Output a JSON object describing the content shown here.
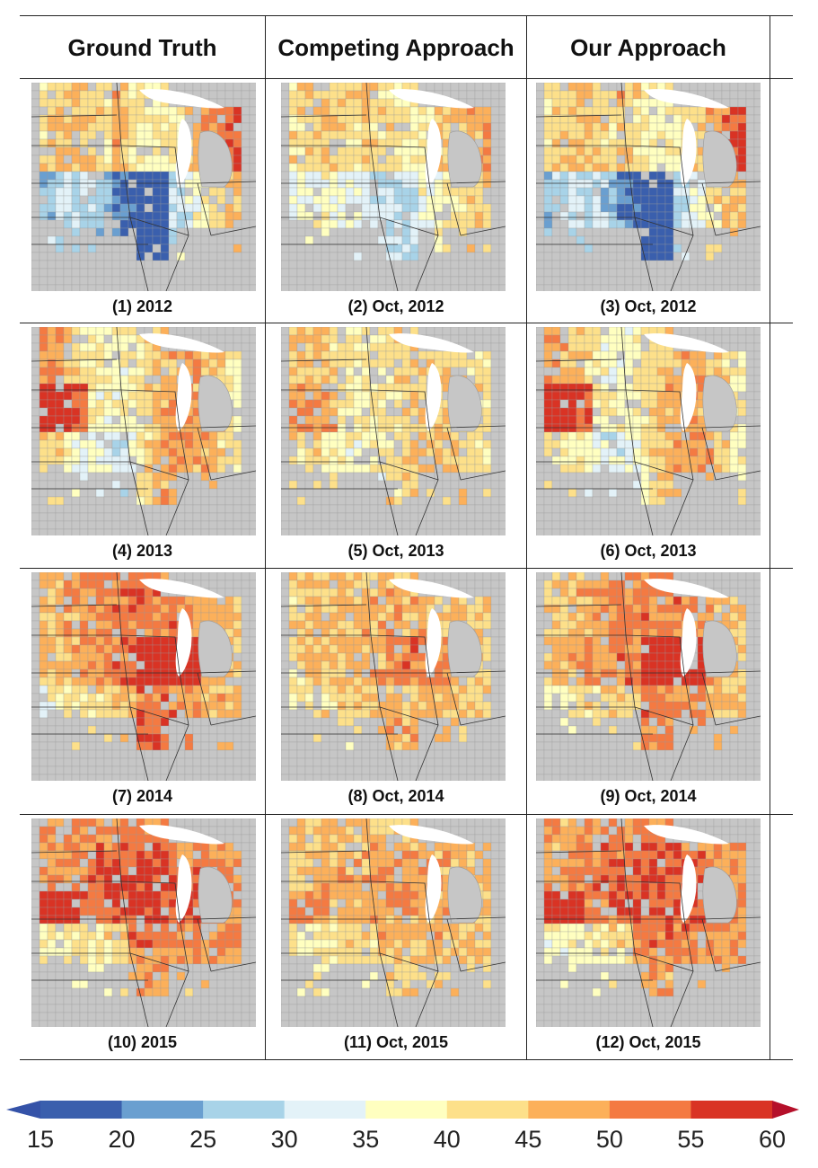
{
  "columns": [
    "Ground Truth",
    "Competing Approach",
    "Our Approach"
  ],
  "rows": [
    {
      "captions": [
        "(1) 2012",
        "(2) Oct, 2012",
        "(3) Oct, 2012"
      ]
    },
    {
      "captions": [
        "(4) 2013",
        "(5) Oct, 2013",
        "(6) Oct, 2013"
      ]
    },
    {
      "captions": [
        "(7) 2014",
        "(8) Oct, 2014",
        "(9) Oct, 2014"
      ]
    },
    {
      "captions": [
        "(10) 2015",
        "(11) Oct, 2015",
        "(12) Oct, 2015"
      ]
    }
  ],
  "legend": {
    "ticks": [
      "15",
      "20",
      "25",
      "30",
      "35",
      "40",
      "45",
      "50",
      "55",
      "60"
    ],
    "colors": [
      "#3a5fad",
      "#6a9fd0",
      "#a8d3e8",
      "#e3f2f8",
      "#ffffc0",
      "#fde08a",
      "#fcb05a",
      "#f47a42",
      "#d93324"
    ],
    "arrow_low": "#3452a8",
    "arrow_high": "#b5102a"
  },
  "map_colors": {
    "background": "#c6c6c6",
    "county_lines": "#9a9a9a",
    "state_lines": "#333333",
    "lake": "#ffffff"
  }
}
